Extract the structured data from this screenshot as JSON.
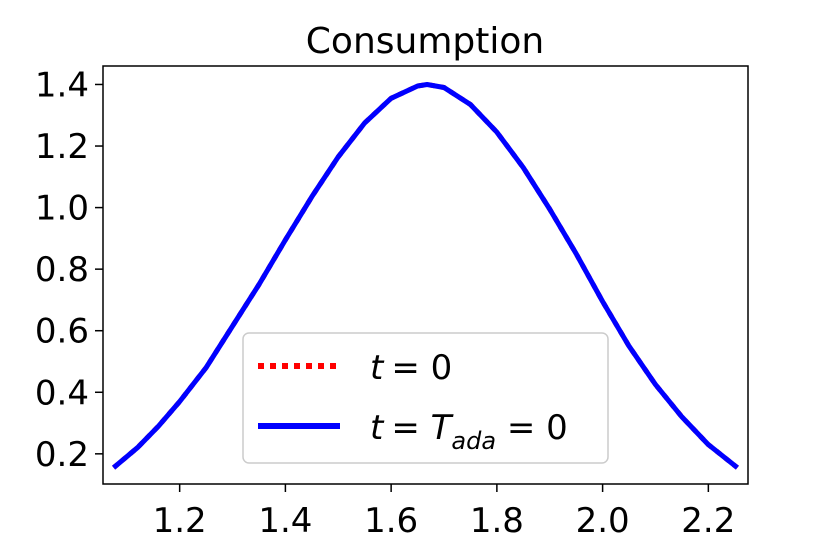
{
  "chart_data": {
    "type": "line",
    "title": "Consumption",
    "xlabel": "",
    "ylabel": "",
    "xlim": [
      1.055,
      2.275
    ],
    "ylim": [
      0.102,
      1.46
    ],
    "xticks": [
      1.2,
      1.4,
      1.6,
      1.8,
      2.0,
      2.2
    ],
    "xtick_labels": [
      "1.2",
      "1.4",
      "1.6",
      "1.8",
      "2.0",
      "2.2"
    ],
    "yticks": [
      0.2,
      0.4,
      0.6,
      0.8,
      1.0,
      1.2,
      1.4
    ],
    "ytick_labels": [
      "0.2",
      "0.4",
      "0.6",
      "0.8",
      "1.0",
      "1.2",
      "1.4"
    ],
    "grid": false,
    "legend_position": "lower-center",
    "series": [
      {
        "name": "t = 0",
        "color": "#ff0000",
        "style": "dotted",
        "x": [
          1.075,
          1.12,
          1.16,
          1.2,
          1.25,
          1.3,
          1.35,
          1.4,
          1.45,
          1.5,
          1.55,
          1.6,
          1.65,
          1.668,
          1.7,
          1.75,
          1.8,
          1.85,
          1.9,
          1.95,
          2.0,
          2.05,
          2.1,
          2.15,
          2.2,
          2.255
        ],
        "y": [
          0.155,
          0.22,
          0.29,
          0.37,
          0.48,
          0.615,
          0.75,
          0.895,
          1.035,
          1.165,
          1.275,
          1.355,
          1.395,
          1.4,
          1.39,
          1.335,
          1.245,
          1.13,
          0.995,
          0.85,
          0.695,
          0.55,
          0.425,
          0.32,
          0.23,
          0.155
        ]
      },
      {
        "name": "t = T_ada = 0",
        "color": "#0000ff",
        "style": "solid",
        "x": [
          1.075,
          1.12,
          1.16,
          1.2,
          1.25,
          1.3,
          1.35,
          1.4,
          1.45,
          1.5,
          1.55,
          1.6,
          1.65,
          1.668,
          1.7,
          1.75,
          1.8,
          1.85,
          1.9,
          1.95,
          2.0,
          2.05,
          2.1,
          2.15,
          2.2,
          2.255
        ],
        "y": [
          0.155,
          0.22,
          0.29,
          0.37,
          0.48,
          0.615,
          0.75,
          0.895,
          1.035,
          1.165,
          1.275,
          1.355,
          1.395,
          1.4,
          1.39,
          1.335,
          1.245,
          1.13,
          0.995,
          0.85,
          0.695,
          0.55,
          0.425,
          0.32,
          0.23,
          0.155
        ]
      }
    ],
    "legend": {
      "entries": [
        {
          "text": "t",
          "eq": "= 0"
        },
        {
          "text": "t",
          "eq": "= ",
          "T": "T",
          "sub": "ada",
          "tail": " = 0"
        }
      ]
    }
  }
}
